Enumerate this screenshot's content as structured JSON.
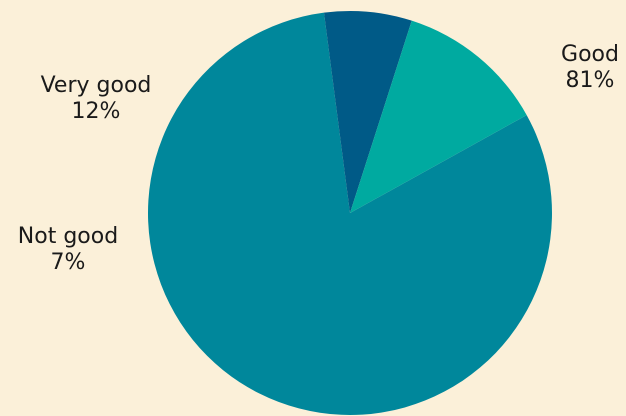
{
  "chart_data": {
    "type": "pie",
    "slices": [
      {
        "label": "Good",
        "pct_label": "81%",
        "value": 81,
        "color": "#00879b"
      },
      {
        "label": "Not good",
        "pct_label": "7%",
        "value": 7,
        "color": "#005a87"
      },
      {
        "label": "Very good",
        "pct_label": "12%",
        "value": 12,
        "color": "#00aaa0"
      }
    ],
    "start_angle_deg": -29,
    "direction": "clockwise",
    "background": "#fbf0d9"
  }
}
